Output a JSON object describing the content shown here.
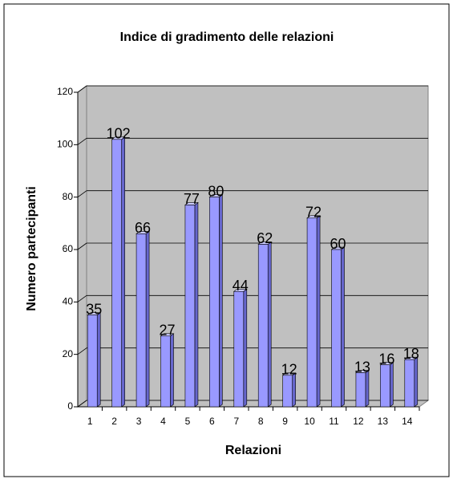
{
  "chart_data": {
    "type": "bar",
    "title": "Indice di gradimento delle relazioni",
    "xlabel": "Relazioni",
    "ylabel": "Numero partecipanti",
    "categories": [
      "1",
      "2",
      "3",
      "4",
      "5",
      "6",
      "7",
      "8",
      "9",
      "10",
      "11",
      "12",
      "13",
      "14"
    ],
    "values": [
      35,
      102,
      66,
      27,
      77,
      80,
      44,
      62,
      12,
      72,
      60,
      13,
      16,
      18
    ],
    "color": "#9999ff",
    "ylim": [
      0,
      120
    ],
    "yticks": [
      0,
      20,
      40,
      60,
      80,
      100,
      120
    ],
    "grid": true
  }
}
